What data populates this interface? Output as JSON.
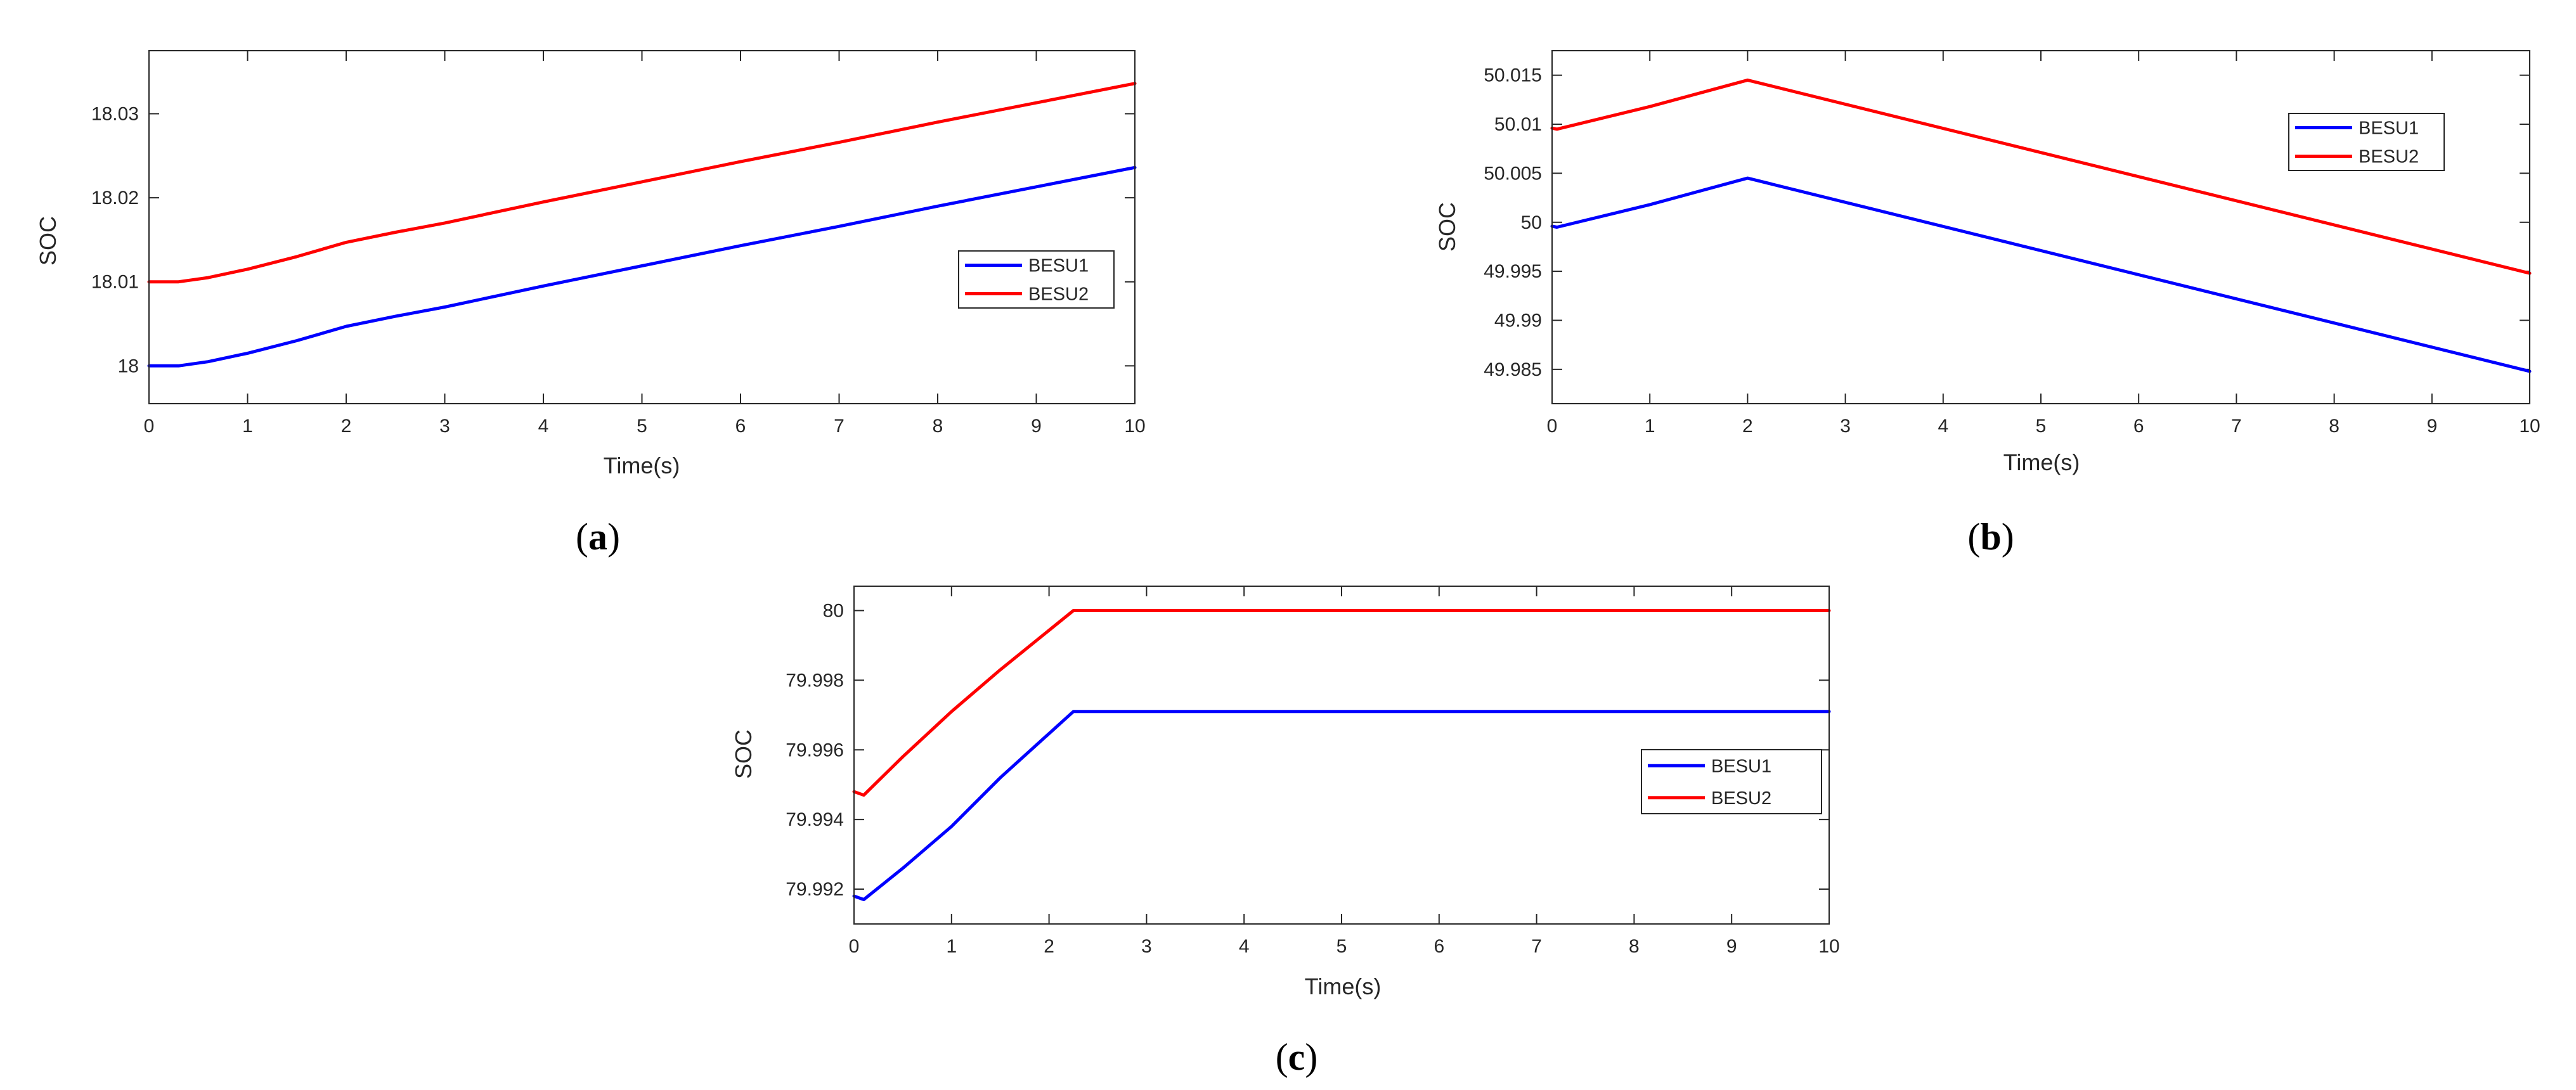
{
  "chart_data": [
    {
      "type": "line",
      "caption": "(a)",
      "xlabel": "Time(s)",
      "ylabel": "SOC",
      "xlim": [
        0,
        10
      ],
      "ylim": [
        17.9955,
        18.0375
      ],
      "xticks": [
        0,
        1,
        2,
        3,
        4,
        5,
        6,
        7,
        8,
        9,
        10
      ],
      "xtick_labels": [
        "0",
        "1",
        "2",
        "3",
        "4",
        "5",
        "6",
        "7",
        "8",
        "9",
        "10"
      ],
      "yticks": [
        18,
        18.01,
        18.02,
        18.03
      ],
      "ytick_labels": [
        "18",
        "18.01",
        "18.02",
        "18.03"
      ],
      "legend_position": "right",
      "series": [
        {
          "name": "BESU1",
          "color": "#0000FF",
          "x": [
            0,
            0.3,
            0.6,
            1,
            1.5,
            2,
            2.5,
            3,
            4,
            5,
            6,
            7,
            8,
            9,
            10
          ],
          "y": [
            18.0,
            18.0,
            18.0005,
            18.0015,
            18.003,
            18.0047,
            18.0059,
            18.007,
            18.0095,
            18.0119,
            18.0143,
            18.0166,
            18.019,
            18.0213,
            18.0236
          ]
        },
        {
          "name": "BESU2",
          "color": "#FF0000",
          "x": [
            0,
            0.3,
            0.6,
            1,
            1.5,
            2,
            2.5,
            3,
            4,
            5,
            6,
            7,
            8,
            9,
            10
          ],
          "y": [
            18.01,
            18.01,
            18.0105,
            18.0115,
            18.013,
            18.0147,
            18.0159,
            18.017,
            18.0195,
            18.0219,
            18.0243,
            18.0266,
            18.029,
            18.0313,
            18.0336
          ]
        }
      ]
    },
    {
      "type": "line",
      "caption": "(b)",
      "xlabel": "Time(s)",
      "ylabel": "SOC",
      "xlim": [
        0,
        10
      ],
      "ylim": [
        49.9815,
        50.0175
      ],
      "xticks": [
        0,
        1,
        2,
        3,
        4,
        5,
        6,
        7,
        8,
        9,
        10
      ],
      "xtick_labels": [
        "0",
        "1",
        "2",
        "3",
        "4",
        "5",
        "6",
        "7",
        "8",
        "9",
        "10"
      ],
      "yticks": [
        49.985,
        49.99,
        49.995,
        50,
        50.005,
        50.01,
        50.015
      ],
      "ytick_labels": [
        "49.985",
        "49.99",
        "49.995",
        "50",
        "50.005",
        "50.01",
        "50.015"
      ],
      "legend_position": "top-right",
      "series": [
        {
          "name": "BESU1",
          "color": "#0000FF",
          "x": [
            0,
            0.05,
            1,
            2,
            10
          ],
          "y": [
            49.9996,
            49.9995,
            50.0018,
            50.0045,
            49.9848
          ]
        },
        {
          "name": "BESU2",
          "color": "#FF0000",
          "x": [
            0,
            0.05,
            1,
            2,
            10
          ],
          "y": [
            50.0096,
            50.0095,
            50.0118,
            50.0145,
            49.9948
          ]
        }
      ]
    },
    {
      "type": "line",
      "caption": "(c)",
      "xlabel": "Time(s)",
      "ylabel": "SOC",
      "xlim": [
        0,
        10
      ],
      "ylim": [
        79.991,
        80.0007
      ],
      "xticks": [
        0,
        1,
        2,
        3,
        4,
        5,
        6,
        7,
        8,
        9,
        10
      ],
      "xtick_labels": [
        "0",
        "1",
        "2",
        "3",
        "4",
        "5",
        "6",
        "7",
        "8",
        "9",
        "10"
      ],
      "yticks": [
        79.992,
        79.994,
        79.996,
        79.998,
        80
      ],
      "ytick_labels": [
        "79.992",
        "79.994",
        "79.996",
        "79.998",
        "80"
      ],
      "legend_position": "right",
      "series": [
        {
          "name": "BESU1",
          "color": "#0000FF",
          "x": [
            0,
            0.1,
            0.5,
            1,
            1.5,
            2.25,
            10
          ],
          "y": [
            79.9918,
            79.9917,
            79.9926,
            79.9938,
            79.9952,
            79.9971,
            79.9971
          ]
        },
        {
          "name": "BESU2",
          "color": "#FF0000",
          "x": [
            0,
            0.1,
            0.5,
            1,
            1.5,
            2.25,
            10
          ],
          "y": [
            79.9948,
            79.9947,
            79.9958,
            79.9971,
            79.9983,
            80.0,
            80.0
          ]
        }
      ]
    }
  ]
}
